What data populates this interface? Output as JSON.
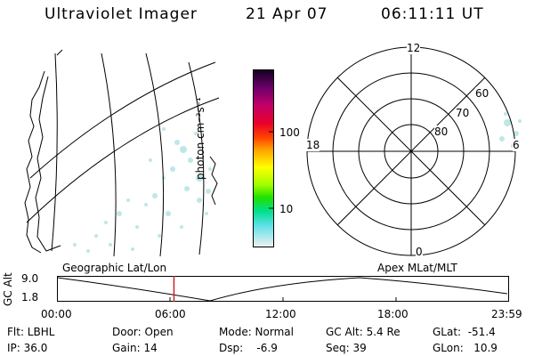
{
  "header": {
    "instrument": "Ultraviolet Imager",
    "date": "21 Apr 07",
    "time": "06:11:11 UT"
  },
  "colorbar": {
    "unit_label": "photon cm⁻²s⁻¹",
    "ticks": [
      "100",
      "10"
    ]
  },
  "polar": {
    "mlt_labels": {
      "top": "12",
      "left": "18",
      "right": "6",
      "bottom": "0"
    },
    "lat_labels": [
      "60",
      "70",
      "80"
    ]
  },
  "altitude_plot": {
    "left_title": "Geographic Lat/Lon",
    "right_title": "Apex  MLat/MLT",
    "y_axis_label": "GC Alt",
    "y_ticks": [
      "9.0",
      "1.8"
    ],
    "x_ticks": [
      "00:00",
      "06:00",
      "12:00",
      "18:00",
      "23:59"
    ],
    "current_time_fraction": 0.2578
  },
  "info": {
    "filter": "Flt: LBHL",
    "ip": "IP: 36.0",
    "door": "Door: Open",
    "gain": "Gain: 14",
    "mode": "Mode: Normal",
    "dsp": "Dsp:    -6.9",
    "gc_alt": "GC Alt: 5.4 Re",
    "seq": "Seq: 39",
    "glat": "GLat:  -51.4",
    "glon": "GLon:   10.9"
  }
}
